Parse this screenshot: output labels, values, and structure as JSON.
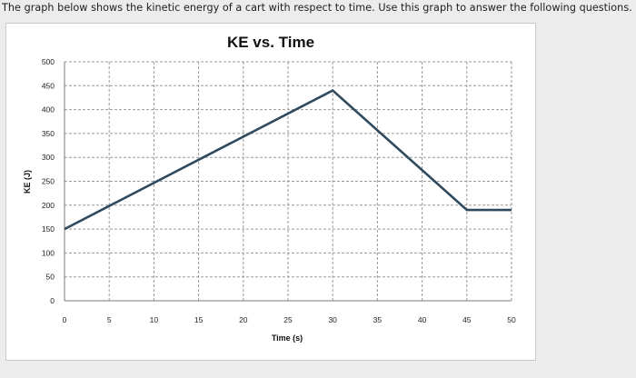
{
  "question_text": "The graph below shows the kinetic energy of a cart with respect to time. Use this graph to answer the following questions.",
  "chart_data": {
    "type": "line",
    "title": "KE vs. Time",
    "xlabel": "Time (s)",
    "ylabel": "KE (J)",
    "xlim": [
      0,
      50
    ],
    "ylim": [
      0,
      500
    ],
    "x_ticks": [
      "0",
      "5",
      "10",
      "15",
      "20",
      "25",
      "30",
      "35",
      "40",
      "45",
      "50"
    ],
    "y_ticks": [
      "0",
      "50",
      "100",
      "150",
      "200",
      "250",
      "300",
      "350",
      "400",
      "450",
      "500"
    ],
    "grid": true,
    "line_color": "#2f4a5e",
    "series": [
      {
        "x": [
          0,
          30,
          45,
          50
        ],
        "y": [
          150,
          440,
          190,
          190
        ]
      }
    ]
  }
}
